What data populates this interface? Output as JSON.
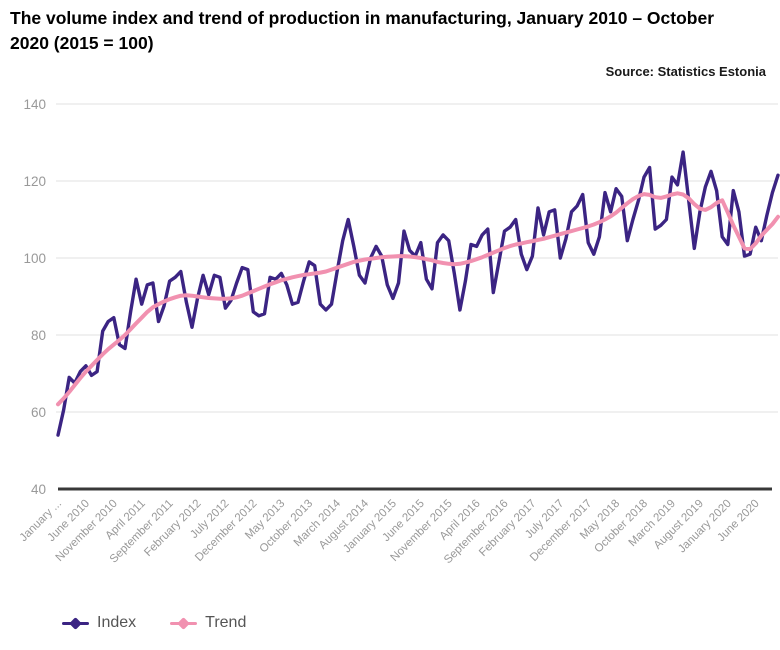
{
  "header": {
    "title": "The volume index and trend of production in manufacturing, January 2010 – October 2020 (2015 = 100)",
    "source": "Source: Statistics Estonia"
  },
  "legend": {
    "items": [
      {
        "label": "Index",
        "color": "#3b2483"
      },
      {
        "label": "Trend",
        "color": "#f191b0"
      }
    ]
  },
  "colors": {
    "grid": "#e6e6e6",
    "axis_line": "#383838",
    "tick_text": "#999999",
    "legend_text": "#555555",
    "index_line": "#3b2483",
    "trend_line": "#f191b0"
  },
  "chart_data": {
    "type": "line",
    "title": "The volume index and trend of production in manufacturing, January 2010 – October 2020 (2015 = 100)",
    "x_start": "January 2010",
    "x_end": "October 2020",
    "x_frequency": "monthly",
    "x_tick_month_step": 5,
    "x_tick_labels": [
      "January ...",
      "June 2010",
      "November 2010",
      "April 2011",
      "September 2011",
      "February 2012",
      "July 2012",
      "December 2012",
      "May 2013",
      "October 2013",
      "March 2014",
      "August 2014",
      "January 2015",
      "June 2015",
      "November 2015",
      "April 2016",
      "September 2016",
      "February 2017",
      "July 2017",
      "December 2017",
      "May 2018",
      "October 2018",
      "March 2019",
      "August 2019",
      "January 2020",
      "June 2020"
    ],
    "ylim": [
      40,
      140
    ],
    "yticks": [
      40,
      60,
      80,
      100,
      120,
      140
    ],
    "grid": true,
    "legend_position": "bottom-left",
    "series": [
      {
        "name": "Index",
        "color": "#3b2483",
        "line_width": 3.4,
        "values": [
          54,
          60.5,
          69,
          67.5,
          70.5,
          72,
          69.5,
          70.5,
          81,
          83.5,
          84.5,
          77.5,
          76.5,
          86,
          94.5,
          88,
          93,
          93.5,
          83.5,
          87.5,
          94,
          95,
          96.5,
          88.5,
          82,
          89.5,
          95.5,
          90.5,
          95.5,
          95,
          87,
          89,
          93.5,
          97.5,
          97,
          86,
          85,
          85.5,
          95,
          94.5,
          96,
          93,
          88,
          88.5,
          94,
          99,
          98,
          88,
          86.5,
          88,
          96.5,
          104.5,
          110,
          103,
          95.5,
          93.5,
          100,
          103,
          100.5,
          93,
          89.5,
          93.5,
          107,
          102,
          100.5,
          104,
          94.5,
          92,
          104,
          106,
          104.5,
          96,
          86.5,
          94,
          103.5,
          103,
          106,
          107.5,
          91,
          99,
          107,
          108,
          110,
          101,
          97,
          100.5,
          113,
          106,
          112,
          112.5,
          100,
          105,
          112,
          113.5,
          116.5,
          104,
          101,
          105.5,
          117,
          112,
          118,
          116,
          104.5,
          110,
          115,
          121,
          123.5,
          107.5,
          108.5,
          110,
          121,
          119,
          127.5,
          115,
          102.5,
          112,
          118.5,
          122.5,
          117.5,
          105.5,
          103.5,
          117.5,
          112,
          100.5,
          101,
          108,
          104.5,
          111,
          117,
          121.5
        ]
      },
      {
        "name": "Trend",
        "color": "#f191b0",
        "line_width": 4,
        "values": [
          62,
          63.5,
          65.2,
          67,
          68.8,
          70.5,
          72,
          73.5,
          75,
          76.3,
          77.5,
          78.7,
          80,
          81.5,
          83,
          84.5,
          86,
          87.2,
          88,
          88.7,
          89.3,
          89.8,
          90.2,
          90.3,
          90.2,
          90,
          89.8,
          89.6,
          89.5,
          89.4,
          89.4,
          89.5,
          89.8,
          90.2,
          90.8,
          91.4,
          92,
          92.6,
          93.2,
          93.7,
          94.2,
          94.6,
          95,
          95.3,
          95.6,
          95.8,
          96,
          96.2,
          96.5,
          97,
          97.5,
          98,
          98.5,
          99,
          99.3,
          99.6,
          99.8,
          100,
          100.2,
          100.3,
          100.4,
          100.5,
          100.5,
          100.4,
          100.2,
          100,
          99.7,
          99.4,
          99,
          98.7,
          98.5,
          98.4,
          98.5,
          98.8,
          99.2,
          99.7,
          100.2,
          100.8,
          101.4,
          102,
          102.6,
          103.1,
          103.5,
          103.8,
          104.1,
          104.4,
          104.7,
          105,
          105.4,
          105.8,
          106.2,
          106.6,
          107,
          107.4,
          107.8,
          108.2,
          108.7,
          109.3,
          110,
          110.8,
          111.8,
          113,
          114.2,
          115.3,
          116.1,
          116.6,
          116.4,
          115.8,
          115.6,
          116,
          116.5,
          116.8,
          116.5,
          115.5,
          114,
          112.8,
          112.5,
          113.2,
          114.3,
          115,
          111.8,
          108.5,
          105.5,
          102.5,
          102.3,
          103.8,
          105.8,
          107.3,
          108.8,
          110.7
        ]
      }
    ]
  }
}
